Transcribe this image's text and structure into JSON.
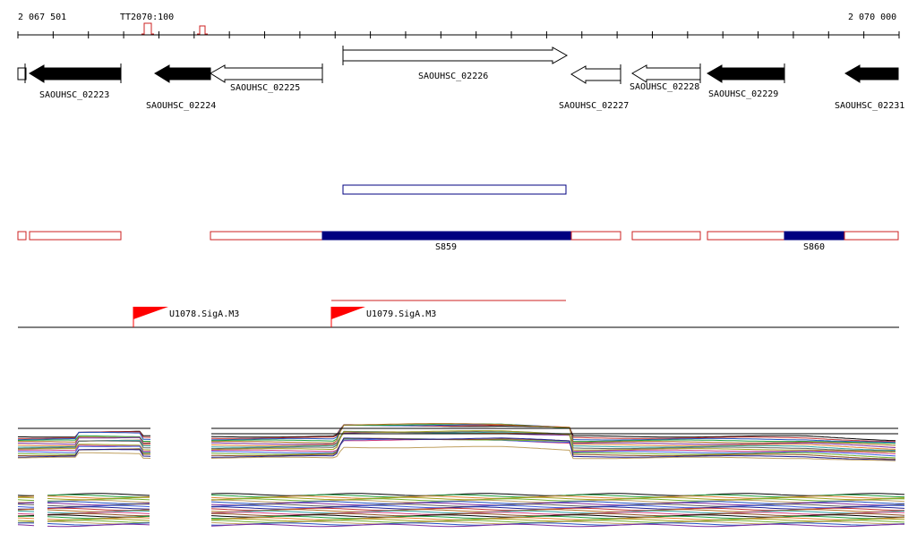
{
  "ruler": {
    "start_label": "2 067 501",
    "end_label": "2 070 000",
    "terminator_label": "TT2070:100"
  },
  "genes": [
    {
      "id": "g1",
      "label": "",
      "strand": "-",
      "filled": false
    },
    {
      "id": "g2",
      "label": "SAOUHSC_02223",
      "strand": "-",
      "filled": true
    },
    {
      "id": "g3",
      "label": "SAOUHSC_02224",
      "strand": "-",
      "filled": true
    },
    {
      "id": "g4",
      "label": "SAOUHSC_02225",
      "strand": "-",
      "filled": false
    },
    {
      "id": "g5",
      "label": "SAOUHSC_02226",
      "strand": "+",
      "filled": false
    },
    {
      "id": "g6",
      "label": "SAOUHSC_02227",
      "strand": "-",
      "filled": false
    },
    {
      "id": "g7",
      "label": "SAOUHSC_02228",
      "strand": "-",
      "filled": false
    },
    {
      "id": "g8",
      "label": "SAOUHSC_02229",
      "strand": "-",
      "filled": true
    },
    {
      "id": "g9",
      "label": "SAOUHSC_02231",
      "strand": "-",
      "filled": true
    }
  ],
  "segments": [
    {
      "id": "S859",
      "label": "S859"
    },
    {
      "id": "S860",
      "label": "S860"
    }
  ],
  "promoters": [
    {
      "label": "U1078.SigA.M3"
    },
    {
      "label": "U1079.SigA.M3"
    }
  ],
  "colors": {
    "gene_fill": "#000000",
    "segment_outline": "#cc2222",
    "segment_fill": "#000080",
    "promoter": "#ff0000",
    "terminator": "#cc2222"
  }
}
